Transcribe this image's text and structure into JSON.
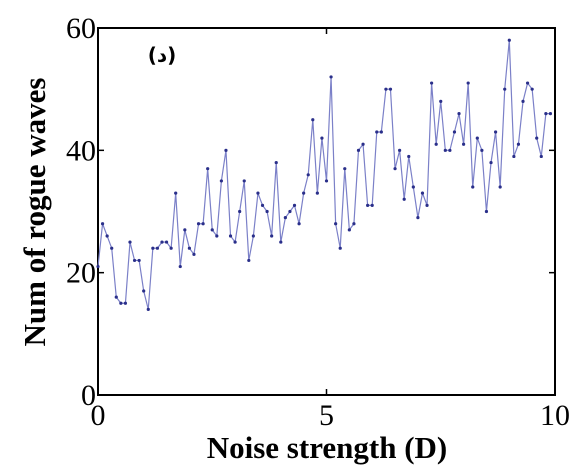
{
  "chart_data": {
    "type": "line",
    "xlabel": "Noise strength (D)",
    "ylabel": "Num of rogue waves",
    "annotation": "(د)",
    "xlim": [
      0,
      10
    ],
    "xticks": [
      0,
      5,
      10
    ],
    "ylim": [
      0,
      60
    ],
    "yticks": [
      0,
      20,
      40,
      60
    ],
    "x": [
      0,
      0.1,
      0.2,
      0.3,
      0.4,
      0.5,
      0.6,
      0.7,
      0.8,
      0.9,
      1,
      1.1,
      1.2,
      1.3,
      1.4,
      1.5,
      1.6,
      1.7,
      1.8,
      1.9,
      2,
      2.1,
      2.2,
      2.3,
      2.4,
      2.5,
      2.6,
      2.7,
      2.8,
      2.9,
      3,
      3.1,
      3.2,
      3.3,
      3.4,
      3.5,
      3.6,
      3.7,
      3.8,
      3.9,
      4,
      4.1,
      4.2,
      4.3,
      4.4,
      4.5,
      4.6,
      4.7,
      4.8,
      4.9,
      5,
      5.1,
      5.2,
      5.3,
      5.4,
      5.5,
      5.6,
      5.7,
      5.8,
      5.9,
      6,
      6.1,
      6.2,
      6.3,
      6.4,
      6.5,
      6.6,
      6.7,
      6.8,
      6.9,
      7,
      7.1,
      7.2,
      7.3,
      7.4,
      7.5,
      7.6,
      7.7,
      7.8,
      7.9,
      8,
      8.1,
      8.2,
      8.3,
      8.4,
      8.5,
      8.6,
      8.7,
      8.8,
      8.9,
      9,
      9.1,
      9.2,
      9.3,
      9.4,
      9.5,
      9.6,
      9.7,
      9.8,
      9.9
    ],
    "series": [
      {
        "color": "#7b80c8",
        "values": [
          21,
          28,
          26,
          24,
          16,
          15,
          15,
          25,
          22,
          22,
          17,
          14,
          24,
          24,
          25,
          25,
          24,
          33,
          21,
          27,
          24,
          23,
          28,
          28,
          37,
          27,
          26,
          35,
          40,
          26,
          25,
          30,
          35,
          22,
          26,
          33,
          31,
          30,
          26,
          38,
          25,
          29,
          30,
          31,
          28,
          33,
          36,
          45,
          33,
          42,
          35,
          52,
          28,
          24,
          37,
          27,
          28,
          40,
          41,
          31,
          31,
          43,
          43,
          50,
          50,
          37,
          40,
          32,
          39,
          34,
          29,
          33,
          31,
          51,
          41,
          48,
          40,
          40,
          43,
          46,
          41,
          51,
          34,
          42,
          40,
          30,
          38,
          43,
          34,
          50,
          58,
          39,
          41,
          48,
          51,
          50,
          42,
          39,
          46,
          46
        ]
      }
    ]
  }
}
